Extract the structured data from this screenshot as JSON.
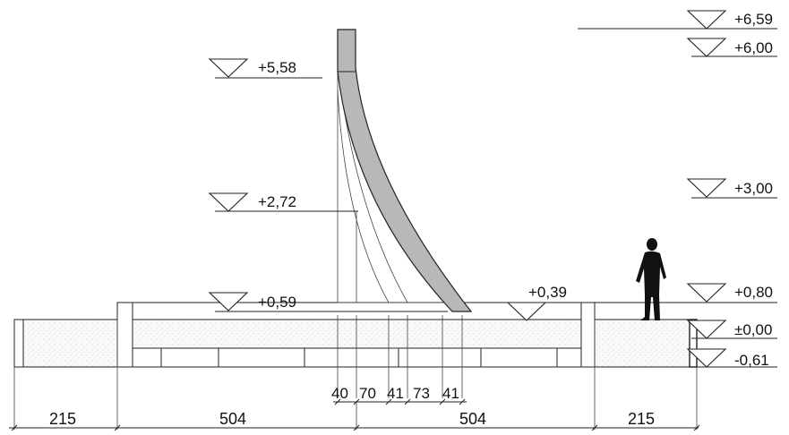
{
  "levels_left": {
    "top": "+5,58",
    "mid": "+2,72",
    "base": "+0,59"
  },
  "levels_center": {
    "plinth": "+0,39"
  },
  "levels_right": {
    "top": "+6,59",
    "l600": "+6,00",
    "l300": "+3,00",
    "l080": "+0,80",
    "l000": "±0,00",
    "l061": "-0,61"
  },
  "dimensions": {
    "overall": [
      "215",
      "504",
      "504",
      "215"
    ],
    "detail": [
      "40",
      "70",
      "41",
      "73",
      "41"
    ]
  },
  "figure": {
    "icon": "person-silhouette-icon"
  },
  "colors": {
    "sail_fill": "#b8b8b8",
    "line": "#222222",
    "hatch": "#dddddd"
  }
}
